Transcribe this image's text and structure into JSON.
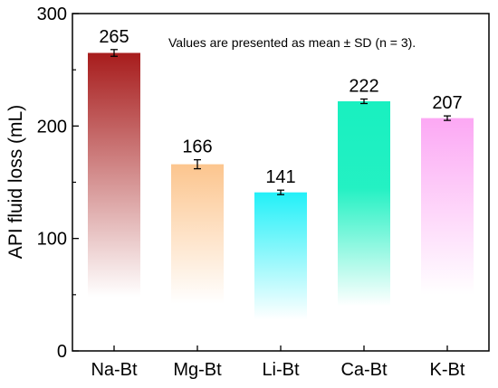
{
  "chart_data": {
    "type": "bar",
    "categories": [
      "Na-Bt",
      "Mg-Bt",
      "Li-Bt",
      "Ca-Bt",
      "K-Bt"
    ],
    "values": [
      265,
      166,
      141,
      222,
      207
    ],
    "errors": [
      3,
      4,
      2,
      2,
      2
    ],
    "data_labels": [
      "265",
      "166",
      "141",
      "222",
      "207"
    ],
    "ylabel": "API fluid loss (mL)",
    "xlabel": "",
    "ylim": [
      0,
      300
    ],
    "yticks": [
      0,
      100,
      200,
      300
    ],
    "ytick_labels": [
      "0",
      "100",
      "200",
      "300"
    ],
    "annotation": "Values are presented as mean ± SD (n = 3).",
    "grid": false,
    "legend": "none",
    "colors": [
      "#a71c1c",
      "#fcc58e",
      "#22f0f8",
      "#18f0c0",
      "#fca8f4"
    ],
    "fade_to": [
      48,
      42,
      28,
      40,
      50
    ],
    "solid_from": [
      null,
      null,
      null,
      145,
      null
    ]
  }
}
